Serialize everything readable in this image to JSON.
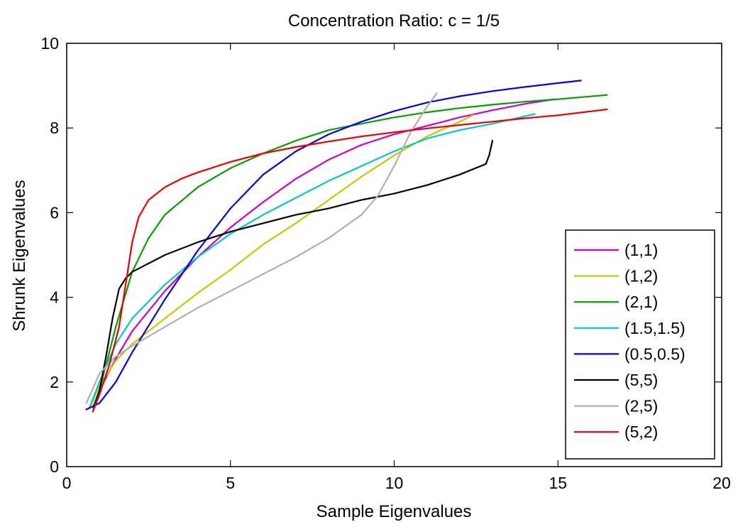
{
  "chart_data": {
    "type": "line",
    "title": "Concentration Ratio: c = 1/5",
    "xlabel": "Sample Eigenvalues",
    "ylabel": "Shrunk Eigenvalues",
    "xlim": [
      0,
      20
    ],
    "ylim": [
      0,
      10
    ],
    "xticks": [
      0,
      5,
      10,
      15,
      20
    ],
    "yticks": [
      0,
      2,
      4,
      6,
      8,
      10
    ],
    "grid": false,
    "legend_position": "bottom-right",
    "series": [
      {
        "name": "(1,1)",
        "color": "#cc00cc",
        "x": [
          0.8,
          1.0,
          1.5,
          2.0,
          3.0,
          4.0,
          5.0,
          6.0,
          7.0,
          8.0,
          9.0,
          10.0,
          11.0,
          12.0,
          13.0,
          14.0,
          14.9
        ],
        "y": [
          1.4,
          1.8,
          2.55,
          3.2,
          4.15,
          4.95,
          5.65,
          6.25,
          6.8,
          7.25,
          7.6,
          7.85,
          8.05,
          8.25,
          8.42,
          8.57,
          8.68
        ]
      },
      {
        "name": "(1,2)",
        "color": "#c8c800",
        "x": [
          0.7,
          1.0,
          1.5,
          2.0,
          3.0,
          4.0,
          5.0,
          6.0,
          7.0,
          8.0,
          9.0,
          10.0,
          11.0,
          12.0,
          12.4
        ],
        "y": [
          1.4,
          1.9,
          2.5,
          2.9,
          3.5,
          4.1,
          4.65,
          5.25,
          5.75,
          6.3,
          6.85,
          7.35,
          7.8,
          8.15,
          8.3
        ]
      },
      {
        "name": "(2,1)",
        "color": "#00a000",
        "x": [
          0.8,
          1.0,
          1.5,
          2.0,
          2.5,
          3.0,
          4.0,
          5.0,
          6.0,
          7.0,
          8.0,
          9.0,
          10.0,
          11.0,
          12.0,
          13.0,
          14.0,
          15.0,
          16.5
        ],
        "y": [
          1.4,
          1.8,
          3.3,
          4.6,
          5.4,
          5.95,
          6.6,
          7.05,
          7.4,
          7.7,
          7.95,
          8.1,
          8.25,
          8.37,
          8.47,
          8.55,
          8.62,
          8.68,
          8.78
        ]
      },
      {
        "name": "(1.5,1.5)",
        "color": "#00c8c8",
        "x": [
          0.7,
          1.0,
          1.5,
          2.0,
          3.0,
          4.0,
          5.0,
          6.0,
          7.0,
          8.0,
          9.0,
          10.0,
          11.0,
          12.0,
          13.0,
          14.3
        ],
        "y": [
          1.4,
          2.0,
          2.9,
          3.5,
          4.3,
          4.95,
          5.5,
          5.95,
          6.35,
          6.75,
          7.1,
          7.45,
          7.75,
          7.95,
          8.1,
          8.33
        ]
      },
      {
        "name": "(0.5,0.5)",
        "color": "#0000ee",
        "x": [
          0.6,
          1.0,
          1.5,
          2.0,
          3.0,
          4.0,
          5.0,
          6.0,
          7.0,
          8.0,
          9.0,
          10.0,
          11.0,
          12.0,
          13.0,
          14.0,
          15.0,
          15.7
        ],
        "y": [
          1.35,
          1.5,
          2.0,
          2.7,
          3.95,
          5.1,
          6.1,
          6.9,
          7.45,
          7.85,
          8.15,
          8.4,
          8.6,
          8.75,
          8.87,
          8.97,
          9.06,
          9.12
        ]
      },
      {
        "name": "(5,5)",
        "color": "#000000",
        "x": [
          0.8,
          1.0,
          1.2,
          1.4,
          1.6,
          1.8,
          2.0,
          3.0,
          4.0,
          5.0,
          6.0,
          7.0,
          8.0,
          9.0,
          10.0,
          11.0,
          12.0,
          12.8,
          12.9,
          13.0
        ],
        "y": [
          1.3,
          1.8,
          2.6,
          3.5,
          4.2,
          4.45,
          4.6,
          5.0,
          5.3,
          5.55,
          5.75,
          5.95,
          6.1,
          6.3,
          6.45,
          6.65,
          6.9,
          7.15,
          7.35,
          7.7
        ]
      },
      {
        "name": "(2,5)",
        "color": "#b0b0b0",
        "x": [
          0.6,
          1.0,
          1.5,
          2.0,
          3.0,
          4.0,
          5.0,
          6.0,
          7.0,
          8.0,
          9.0,
          9.5,
          10.0,
          10.5,
          11.0,
          11.3
        ],
        "y": [
          1.5,
          2.2,
          2.6,
          2.85,
          3.3,
          3.75,
          4.15,
          4.55,
          4.95,
          5.4,
          5.95,
          6.4,
          7.1,
          7.9,
          8.5,
          8.82
        ]
      },
      {
        "name": "(5,2)",
        "color": "#ee0000",
        "x": [
          0.8,
          1.0,
          1.3,
          1.6,
          1.8,
          2.0,
          2.2,
          2.5,
          3.0,
          3.5,
          4.0,
          5.0,
          6.0,
          7.0,
          8.0,
          9.0,
          10.0,
          11.0,
          12.0,
          13.0,
          14.0,
          15.0,
          16.5
        ],
        "y": [
          1.3,
          1.7,
          2.4,
          3.3,
          4.3,
          5.3,
          5.9,
          6.3,
          6.6,
          6.8,
          6.95,
          7.2,
          7.4,
          7.55,
          7.68,
          7.8,
          7.9,
          7.99,
          8.07,
          8.15,
          8.23,
          8.3,
          8.44
        ]
      }
    ]
  }
}
